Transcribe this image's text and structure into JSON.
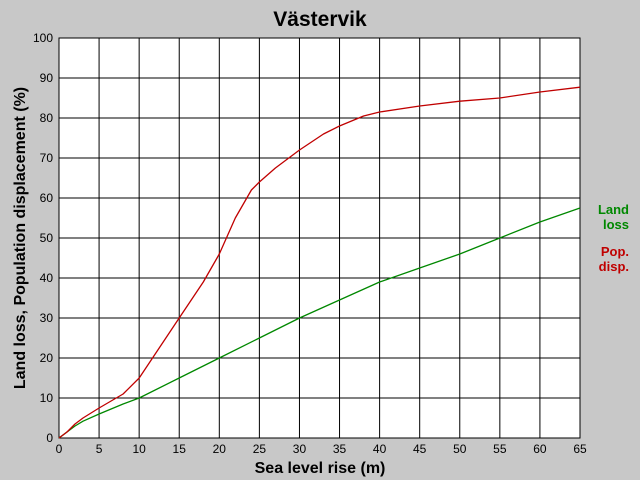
{
  "chart_data": {
    "type": "line",
    "title": "Västervik",
    "xlabel": "Sea level rise (m)",
    "ylabel": "Land loss, Population displacement (%)",
    "xlim": [
      0,
      65
    ],
    "ylim": [
      0,
      100
    ],
    "x_ticks": [
      "0",
      "5",
      "10",
      "15",
      "20",
      "25",
      "30",
      "35",
      "40",
      "45",
      "50",
      "55",
      "60",
      "65"
    ],
    "y_ticks": [
      "0",
      "10",
      "20",
      "30",
      "40",
      "50",
      "60",
      "70",
      "80",
      "90",
      "100"
    ],
    "grid": true,
    "legend_position": "right",
    "series": [
      {
        "name": "Land loss",
        "legend_lines": [
          "Land",
          "loss"
        ],
        "color": "#008800",
        "x": [
          0,
          1,
          2,
          3,
          5,
          8,
          10,
          15,
          20,
          25,
          30,
          35,
          40,
          45,
          50,
          55,
          60,
          65
        ],
        "y": [
          0,
          1.5,
          3,
          4.2,
          6,
          8.5,
          10,
          15,
          20,
          25,
          30,
          34.5,
          39,
          42.5,
          46,
          50,
          54,
          57.5
        ]
      },
      {
        "name": "Pop. disp.",
        "legend_lines": [
          "Pop.",
          "disp."
        ],
        "color": "#c00000",
        "x": [
          0,
          1,
          2,
          3,
          5,
          8,
          10,
          12,
          15,
          18,
          20,
          22,
          24,
          25,
          27,
          30,
          33,
          35,
          38,
          40,
          45,
          50,
          55,
          60,
          65
        ],
        "y": [
          0,
          1.5,
          3.5,
          5,
          7.5,
          11,
          15,
          21,
          30,
          39,
          46,
          55,
          62,
          64,
          67.5,
          72,
          76,
          78,
          80.5,
          81.5,
          83,
          84.2,
          85,
          86.5,
          87.7
        ]
      }
    ]
  }
}
